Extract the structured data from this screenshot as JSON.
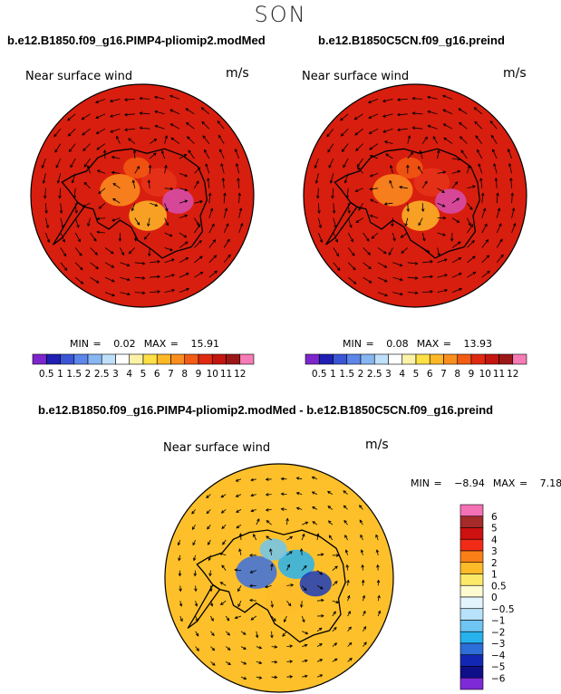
{
  "season": "SON",
  "panels": {
    "left": {
      "title": "b.e12.B1850.f09_g16.PIMP4-pliomip2.modMed",
      "variable": "Near surface wind",
      "units": "m/s",
      "min_label": "MIN =",
      "min_value": "0.02",
      "max_label": "MAX =",
      "max_value": "15.91"
    },
    "right": {
      "title": "b.e12.B1850C5CN.f09_g16.preind",
      "variable": "Near surface wind",
      "units": "m/s",
      "min_label": "MIN =",
      "min_value": "0.08",
      "max_label": "MAX =",
      "max_value": "13.93"
    },
    "diff": {
      "title": "b.e12.B1850.f09_g16.PIMP4-pliomip2.modMed - b.e12.B1850C5CN.f09_g16.preind",
      "variable": "Near surface wind",
      "units": "m/s",
      "min_label": "MIN =",
      "min_value": "−8.94",
      "max_label": "MAX =",
      "max_value": "7.18"
    }
  },
  "colorbar_abs": {
    "labels": [
      "0.5",
      "1",
      "1.5",
      "2",
      "2.5",
      "3",
      "4",
      "5",
      "6",
      "7",
      "8",
      "9",
      "10",
      "11",
      "12"
    ],
    "colors": [
      "#7d26cd",
      "#1f1fb4",
      "#3a55d6",
      "#5c86ea",
      "#88b6f2",
      "#bfe0fa",
      "#ffffff",
      "#fdf3a8",
      "#fde046",
      "#fdb827",
      "#fb8e1e",
      "#f25c14",
      "#e02a10",
      "#c4150f",
      "#9c1717",
      "#f57cb4"
    ]
  },
  "colorbar_diff": {
    "labels": [
      "6",
      "5",
      "4",
      "3",
      "2",
      "1",
      "0.5",
      "0",
      "−0.5",
      "−1",
      "−2",
      "−3",
      "−4",
      "−5",
      "−6"
    ],
    "colors": [
      "#f571b5",
      "#a52a2a",
      "#cd1010",
      "#f02b18",
      "#fb7f18",
      "#fdbb2a",
      "#fde968",
      "#fffbd0",
      "#e3f4fd",
      "#b8e2f9",
      "#6fc6f2",
      "#27b2ee",
      "#2e6ed8",
      "#1228b4",
      "#0f0f8a",
      "#7e2ad6"
    ]
  },
  "map": {
    "projection": "south-polar-stereographic",
    "abs_field_gradient": [
      "#d81e0e",
      "#f25a12",
      "#fb8f1e",
      "#fdb727",
      "#fde24a",
      "#ffffff",
      "#a9d6f6",
      "#3b60d8",
      "#1a1aa6"
    ],
    "diff_field_gradient": [
      "#fdc02a",
      "#fdea72",
      "#fffbd0",
      "#a8dcf7",
      "#3fa3ee",
      "#3050d0"
    ]
  }
}
